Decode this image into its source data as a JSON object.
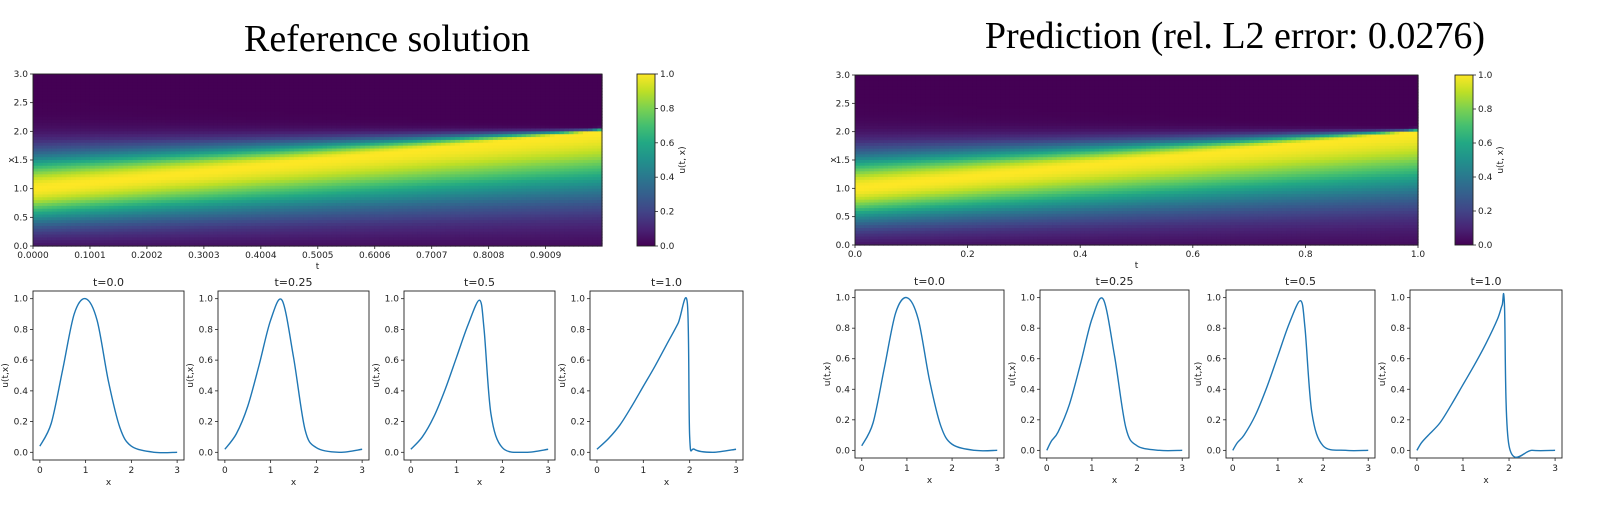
{
  "figure": {
    "panels": [
      {
        "title": "Reference solution",
        "heatmap": {
          "xlabel": "t",
          "ylabel": "x",
          "xticks": [
            "0.0000",
            "0.1001",
            "0.2002",
            "0.3003",
            "0.4004",
            "0.5005",
            "0.6006",
            "0.7007",
            "0.8008",
            "0.9009"
          ],
          "yticks": [
            "0.0",
            "0.5",
            "1.0",
            "1.5",
            "2.0",
            "2.5",
            "3.0"
          ],
          "colorbar_label": "u(t, x)",
          "colorbar_ticks": [
            "0.0",
            "0.2",
            "0.4",
            "0.6",
            "0.8",
            "1.0"
          ]
        }
      },
      {
        "title": "Prediction (rel. L2 error: 0.0276)",
        "heatmap": {
          "xlabel": "t",
          "ylabel": "x",
          "xticks": [
            "0.0",
            "0.2",
            "0.4",
            "0.6",
            "0.8",
            "1.0"
          ],
          "yticks": [
            "0.0",
            "0.5",
            "1.0",
            "1.5",
            "2.0",
            "2.5",
            "3.0"
          ],
          "colorbar_label": "u(t, x)",
          "colorbar_ticks": [
            "0.0",
            "0.2",
            "0.4",
            "0.6",
            "0.8",
            "1.0"
          ]
        }
      }
    ],
    "slice_axes": {
      "xlabel": "x",
      "ylabel": "u(t,x)",
      "xticks": [
        "0",
        "1",
        "2",
        "3"
      ],
      "yticks": [
        "0.0",
        "0.2",
        "0.4",
        "0.6",
        "0.8",
        "1.0"
      ],
      "line_color": "#1f77b4"
    },
    "colormap": "viridis"
  },
  "chart_data": [
    {
      "type": "heatmap",
      "title": "Reference solution",
      "xlabel": "t",
      "ylabel": "x",
      "xlim": [
        0,
        1
      ],
      "ylim": [
        0,
        3
      ],
      "zlim": [
        0,
        1
      ],
      "colorbar_label": "u(t, x)",
      "description_values": {
        "peak_x_at_t0": 1.0,
        "peak_x_at_t1": 2.0
      }
    },
    {
      "type": "line",
      "title": "t=0.0",
      "xlabel": "x",
      "ylabel": "u(t,x)",
      "xlim": [
        0,
        3
      ],
      "ylim": [
        0,
        1
      ],
      "x": [
        0,
        0.25,
        0.5,
        0.75,
        1.0,
        1.25,
        1.5,
        1.75,
        2.0,
        2.5,
        3.0
      ],
      "series": [
        {
          "values": [
            0.04,
            0.19,
            0.54,
            0.9,
            1.0,
            0.86,
            0.46,
            0.16,
            0.04,
            0.0,
            0.0
          ]
        }
      ]
    },
    {
      "type": "line",
      "title": "t=0.25",
      "xlabel": "x",
      "ylabel": "u(t,x)",
      "xlim": [
        0,
        3
      ],
      "ylim": [
        0,
        1
      ],
      "x": [
        0,
        0.25,
        0.5,
        0.75,
        1.0,
        1.25,
        1.5,
        1.75,
        2.0,
        2.5,
        3.0
      ],
      "series": [
        {
          "values": [
            0.02,
            0.12,
            0.3,
            0.57,
            0.86,
            0.99,
            0.62,
            0.15,
            0.03,
            0.0,
            0.02
          ]
        }
      ]
    },
    {
      "type": "line",
      "title": "t=0.5",
      "xlabel": "x",
      "ylabel": "u(t,x)",
      "xlim": [
        0,
        3
      ],
      "ylim": [
        0,
        1
      ],
      "x": [
        0,
        0.25,
        0.5,
        0.75,
        1.0,
        1.25,
        1.5,
        1.6,
        1.75,
        2.0,
        2.5,
        3.0
      ],
      "series": [
        {
          "values": [
            0.02,
            0.1,
            0.23,
            0.41,
            0.62,
            0.83,
            0.99,
            0.8,
            0.25,
            0.03,
            0.0,
            0.02
          ]
        }
      ]
    },
    {
      "type": "line",
      "title": "t=1.0",
      "xlabel": "x",
      "ylabel": "u(t,x)",
      "xlim": [
        0,
        3
      ],
      "ylim": [
        0,
        1
      ],
      "x": [
        0,
        0.25,
        0.5,
        0.75,
        1.0,
        1.25,
        1.5,
        1.75,
        1.95,
        2.0,
        2.1,
        2.5,
        3.0
      ],
      "series": [
        {
          "values": [
            0.02,
            0.09,
            0.18,
            0.3,
            0.43,
            0.56,
            0.7,
            0.84,
            0.97,
            0.1,
            0.02,
            0.0,
            0.02
          ]
        }
      ]
    },
    {
      "type": "heatmap",
      "title": "Prediction (rel. L2 error: 0.0276)",
      "xlabel": "t",
      "ylabel": "x",
      "xlim": [
        0,
        1
      ],
      "ylim": [
        0,
        3
      ],
      "zlim": [
        0,
        1
      ],
      "colorbar_label": "u(t, x)"
    },
    {
      "type": "line",
      "title": "t=0.0",
      "xlabel": "x",
      "ylabel": "u(t,x)",
      "xlim": [
        0,
        3
      ],
      "ylim": [
        0,
        1
      ],
      "x": [
        0,
        0.25,
        0.5,
        0.75,
        1.0,
        1.25,
        1.5,
        1.75,
        2.0,
        2.5,
        3.0
      ],
      "series": [
        {
          "values": [
            0.03,
            0.18,
            0.54,
            0.9,
            1.0,
            0.86,
            0.46,
            0.16,
            0.04,
            0.0,
            0.0
          ]
        }
      ]
    },
    {
      "type": "line",
      "title": "t=0.25",
      "xlabel": "x",
      "ylabel": "u(t,x)",
      "xlim": [
        0,
        3
      ],
      "ylim": [
        0,
        1
      ],
      "x": [
        0,
        0.1,
        0.25,
        0.5,
        0.75,
        1.0,
        1.25,
        1.5,
        1.75,
        2.0,
        2.5,
        3.0
      ],
      "series": [
        {
          "values": [
            0.0,
            0.06,
            0.12,
            0.3,
            0.57,
            0.86,
            0.99,
            0.62,
            0.15,
            0.03,
            0.0,
            0.0
          ]
        }
      ]
    },
    {
      "type": "line",
      "title": "t=0.5",
      "xlabel": "x",
      "ylabel": "u(t,x)",
      "xlim": [
        0,
        3
      ],
      "ylim": [
        0,
        1
      ],
      "x": [
        0,
        0.1,
        0.25,
        0.5,
        0.75,
        1.0,
        1.25,
        1.5,
        1.6,
        1.75,
        2.0,
        2.5,
        3.0
      ],
      "series": [
        {
          "values": [
            0.0,
            0.05,
            0.1,
            0.23,
            0.41,
            0.62,
            0.83,
            0.98,
            0.8,
            0.25,
            0.03,
            0.0,
            0.0
          ]
        }
      ]
    },
    {
      "type": "line",
      "title": "t=1.0",
      "xlabel": "x",
      "ylabel": "u(t,x)",
      "xlim": [
        0,
        3
      ],
      "ylim": [
        0,
        1
      ],
      "x": [
        0,
        0.1,
        0.25,
        0.5,
        0.75,
        1.0,
        1.25,
        1.5,
        1.75,
        1.85,
        1.9,
        2.0,
        2.5,
        3.0
      ],
      "series": [
        {
          "values": [
            0.0,
            0.05,
            0.1,
            0.18,
            0.3,
            0.43,
            0.56,
            0.7,
            0.86,
            0.95,
            0.96,
            0.03,
            0.0,
            0.0
          ]
        }
      ]
    }
  ]
}
